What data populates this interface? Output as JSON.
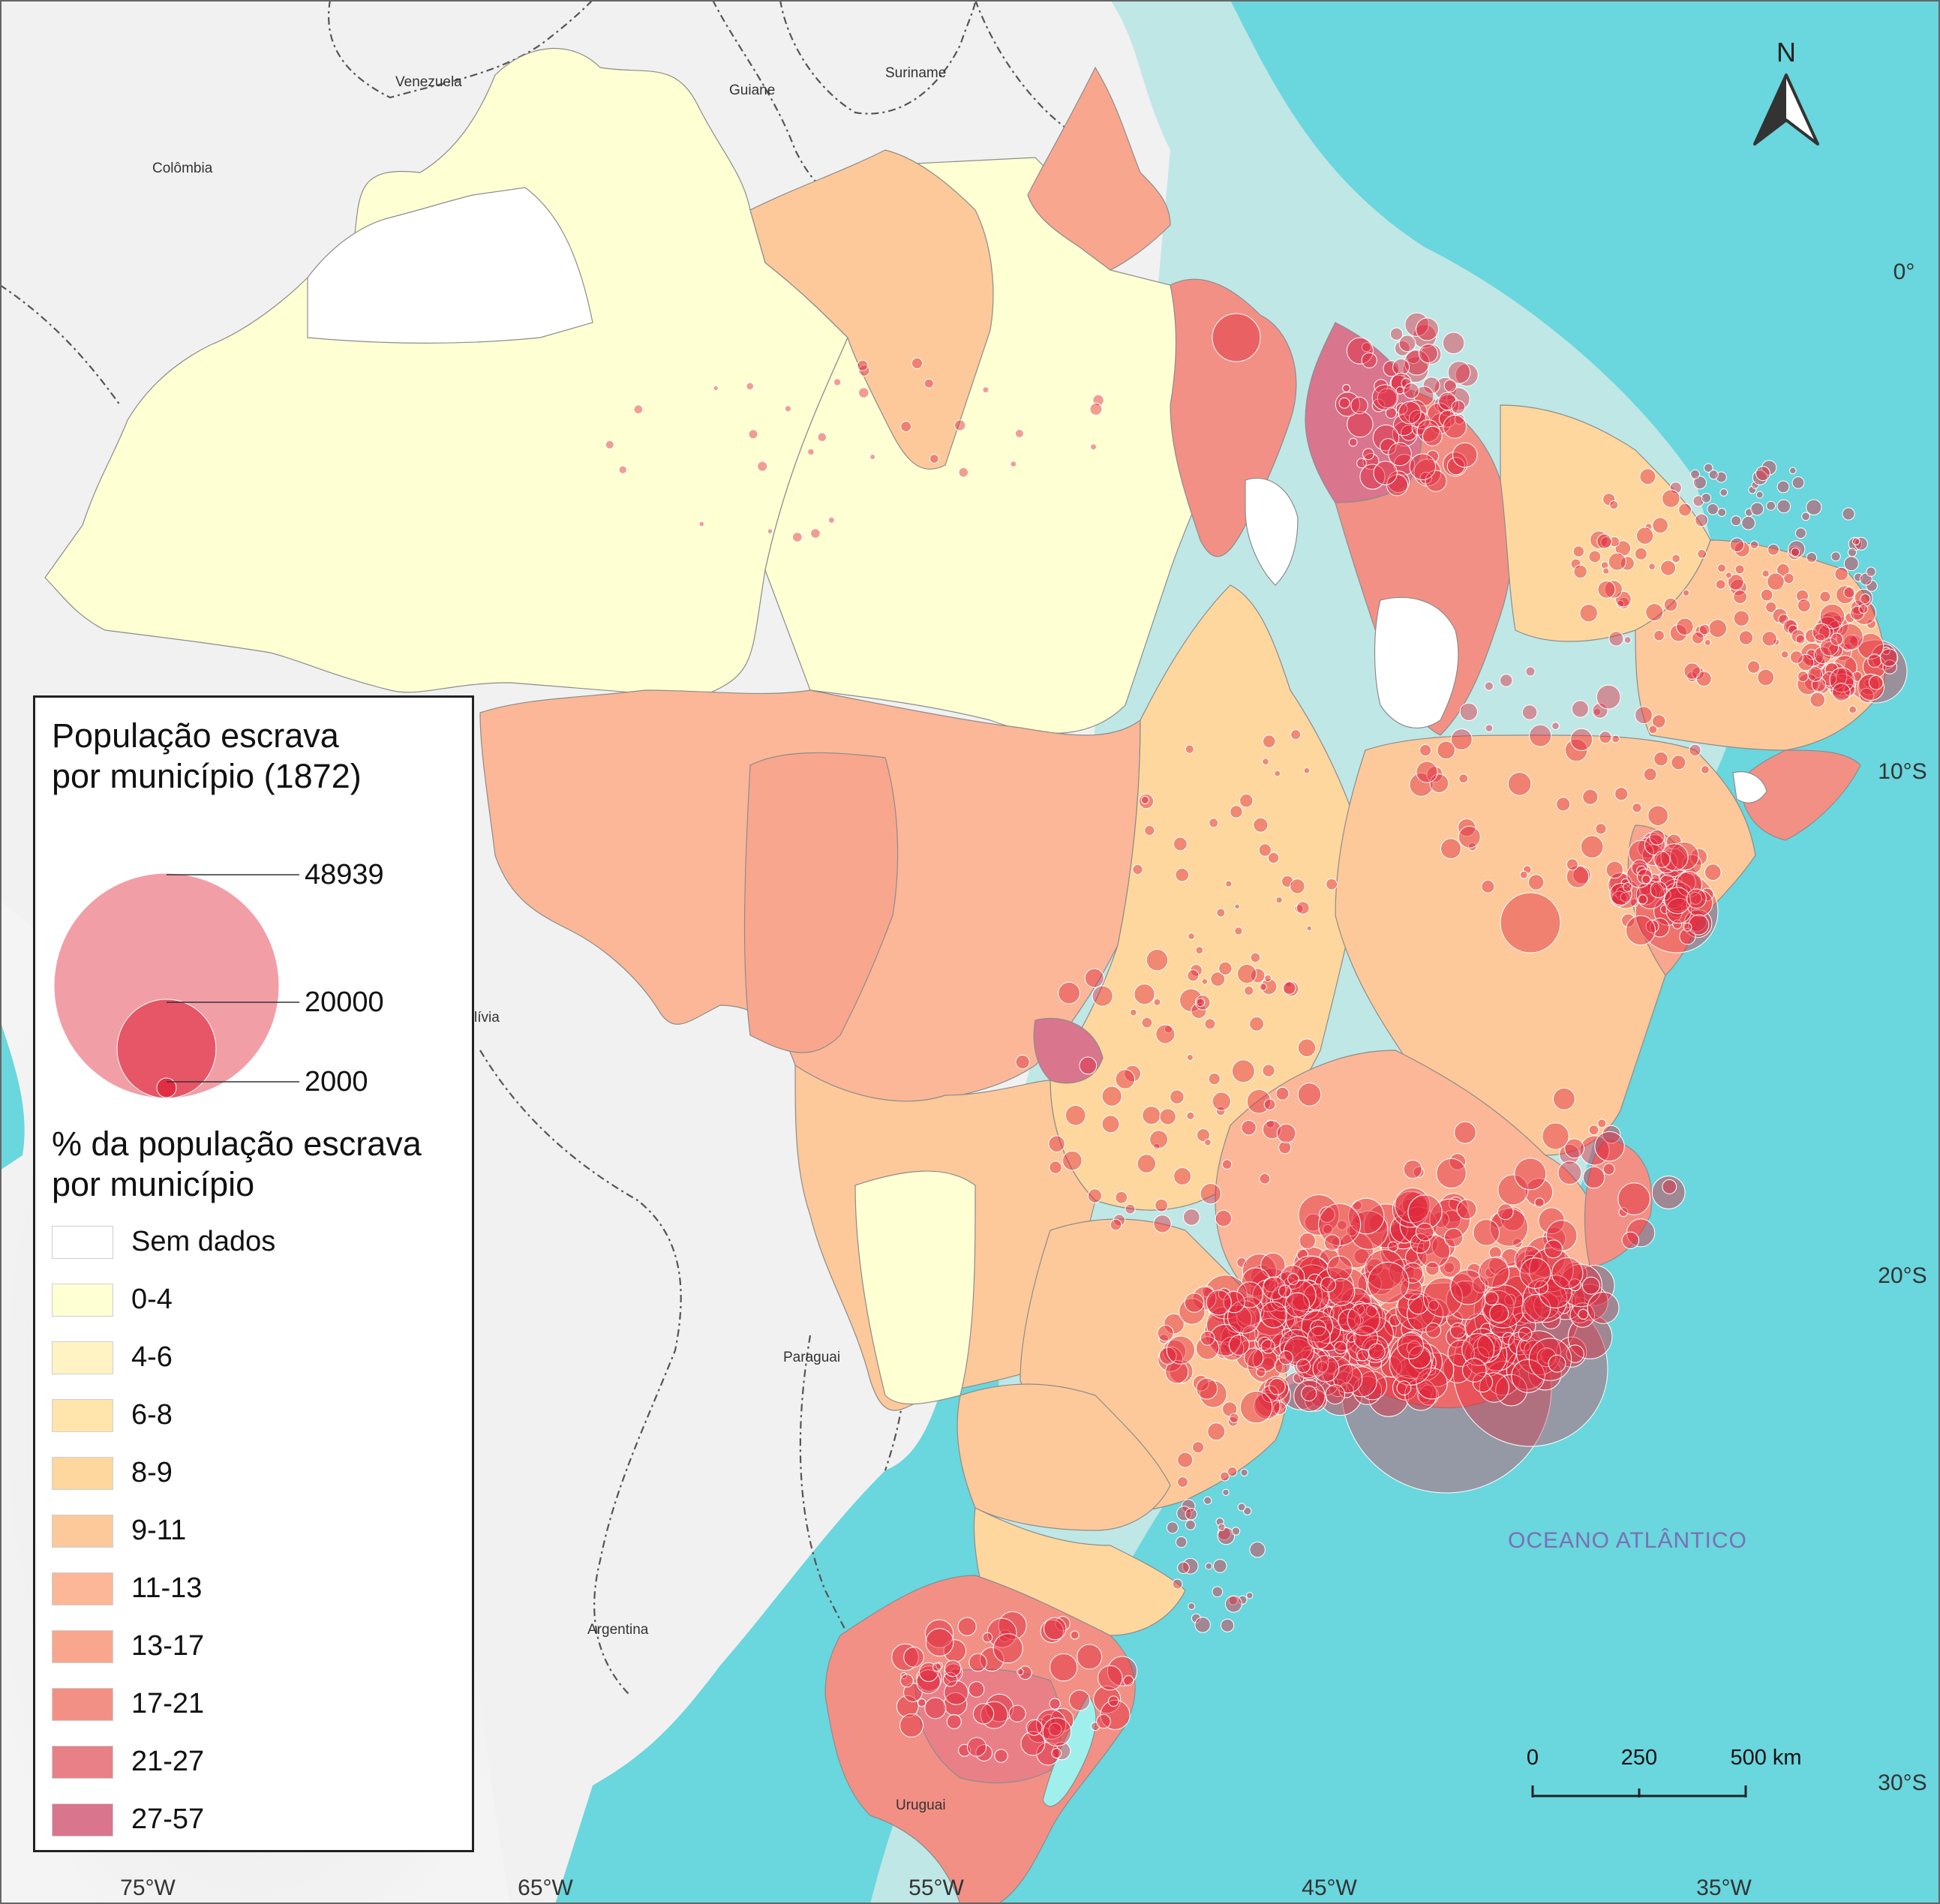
{
  "map": {
    "countries": [
      {
        "id": "venezuela",
        "label": "Venezuela"
      },
      {
        "id": "guiane",
        "label": "Guiane"
      },
      {
        "id": "suriname",
        "label": "Suriname"
      },
      {
        "id": "colombia",
        "label": "Colômbia"
      },
      {
        "id": "bolivia",
        "label": "lívia"
      },
      {
        "id": "paraguai",
        "label": "Paraguai"
      },
      {
        "id": "argentina",
        "label": "Argentina"
      },
      {
        "id": "uruguai",
        "label": "Uruguai"
      }
    ],
    "ocean_label": "OCEANO ATLÂNTICO",
    "latitude_labels": [
      "0°",
      "10°S",
      "20°S",
      "30°S"
    ],
    "longitude_labels": [
      "75°W",
      "65°W",
      "55°W",
      "45°W",
      "35°W"
    ],
    "north_label": "N",
    "scale_bar": {
      "labels": [
        "0",
        "250",
        "500 km"
      ]
    },
    "colors": {
      "ocean_deep": "#6ad6dd",
      "ocean_shelf": "#bfe7e6",
      "land_neighbors": "#f1f1f1",
      "bubble": "#e1273c"
    }
  },
  "legend": {
    "size_title": "População escrava\npor município (1872)",
    "size_values": [
      "48939",
      "20000",
      "2000"
    ],
    "class_title": "% da população escrava\npor município",
    "classes": [
      {
        "label": "Sem dados",
        "color": "#ffffff"
      },
      {
        "label": "0-4",
        "color": "#ffffd4"
      },
      {
        "label": "4-6",
        "color": "#fff3c4"
      },
      {
        "label": "6-8",
        "color": "#ffe4ac"
      },
      {
        "label": "8-9",
        "color": "#fed79f"
      },
      {
        "label": "9-11",
        "color": "#fdc99a"
      },
      {
        "label": "11-13",
        "color": "#fbb797"
      },
      {
        "label": "13-17",
        "color": "#f8a68e"
      },
      {
        "label": "17-21",
        "color": "#f39085"
      },
      {
        "label": "21-27",
        "color": "#e98088"
      },
      {
        "label": "27-57",
        "color": "#d9758d"
      }
    ]
  }
}
